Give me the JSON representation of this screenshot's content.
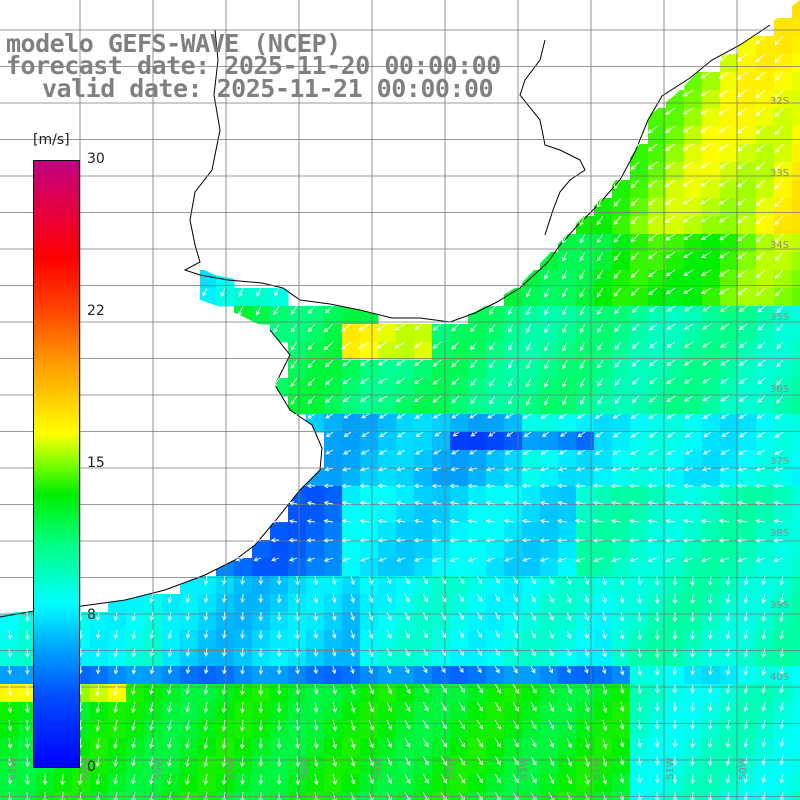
{
  "title": {
    "line1": "modelo GEFS-WAVE (NCEP)",
    "line2": "forecast date: 2025-11-20 00:00:00",
    "line3": "valid date: 2025-11-21 00:00:00"
  },
  "colorbar": {
    "unit": "[m/s]",
    "ticks": [
      "30",
      "22",
      "15",
      "8",
      "0"
    ],
    "range": [
      0,
      30
    ],
    "colors": [
      "#0000ff",
      "#00a8ff",
      "#00ffff",
      "#00ee00",
      "#ffff00",
      "#ff4000",
      "#ff0000",
      "#c00080"
    ]
  },
  "map": {
    "lat_labels": [
      "32S",
      "33S",
      "34S",
      "35S",
      "36S",
      "37S",
      "38S",
      "39S",
      "40S"
    ],
    "lon_labels": [
      "61W",
      "60W",
      "59W",
      "57W",
      "56W",
      "55W",
      "54W",
      "53W",
      "52W",
      "51W",
      "50W",
      "49W"
    ],
    "land_color": "#ffffff",
    "coast_color": "#000000",
    "grid_color": "#777777",
    "arrow_color": "#ffffff"
  }
}
